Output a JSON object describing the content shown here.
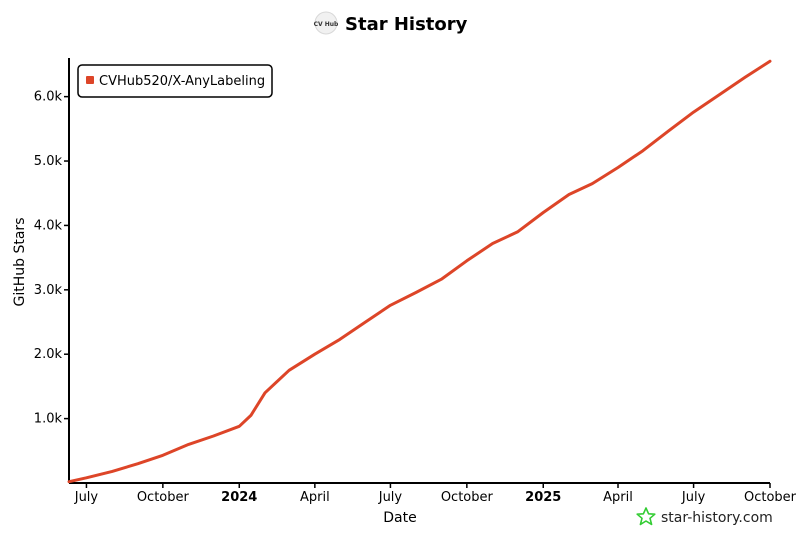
{
  "header": {
    "title": "Star History",
    "logo_text": "CV Hub"
  },
  "watermark": {
    "text": "star-history.com",
    "color": "#33cc33"
  },
  "chart_data": {
    "type": "line",
    "title": "Star History",
    "xlabel": "Date",
    "ylabel": "GitHub Stars",
    "x_tick_labels": [
      "July",
      "October",
      "2024",
      "April",
      "July",
      "October",
      "2025",
      "April",
      "July",
      "October"
    ],
    "x_tick_dates": [
      "2023-07-01",
      "2023-10-01",
      "2024-01-01",
      "2024-04-01",
      "2024-07-01",
      "2024-10-01",
      "2025-01-01",
      "2025-04-01",
      "2025-07-01",
      "2025-10-01"
    ],
    "y_tick_labels": [
      "1.0k",
      "2.0k",
      "3.0k",
      "4.0k",
      "5.0k",
      "6.0k"
    ],
    "y_tick_values": [
      1000,
      2000,
      3000,
      4000,
      5000,
      6000
    ],
    "xlim": [
      "2023-06-10",
      "2025-10-01"
    ],
    "ylim": [
      0,
      6600
    ],
    "grid": false,
    "legend_position": "top-left",
    "series": [
      {
        "name": "CVHub520/X-AnyLabeling",
        "color": "#dd4528",
        "x": [
          "2023-06-10",
          "2023-07-01",
          "2023-08-01",
          "2023-09-01",
          "2023-10-01",
          "2023-11-01",
          "2023-12-01",
          "2024-01-01",
          "2024-01-15",
          "2024-02-01",
          "2024-03-01",
          "2024-04-01",
          "2024-05-01",
          "2024-06-01",
          "2024-07-01",
          "2024-08-01",
          "2024-09-01",
          "2024-10-01",
          "2024-11-01",
          "2024-12-01",
          "2025-01-01",
          "2025-02-01",
          "2025-03-01",
          "2025-04-01",
          "2025-05-01",
          "2025-06-01",
          "2025-07-01",
          "2025-08-01",
          "2025-09-01",
          "2025-10-01"
        ],
        "values": [
          20,
          80,
          180,
          300,
          430,
          600,
          730,
          880,
          1050,
          1400,
          1750,
          2000,
          2230,
          2500,
          2760,
          2960,
          3170,
          3450,
          3720,
          3900,
          4200,
          4480,
          4650,
          4900,
          5160,
          5470,
          5760,
          6030,
          6300,
          6550
        ]
      }
    ]
  }
}
